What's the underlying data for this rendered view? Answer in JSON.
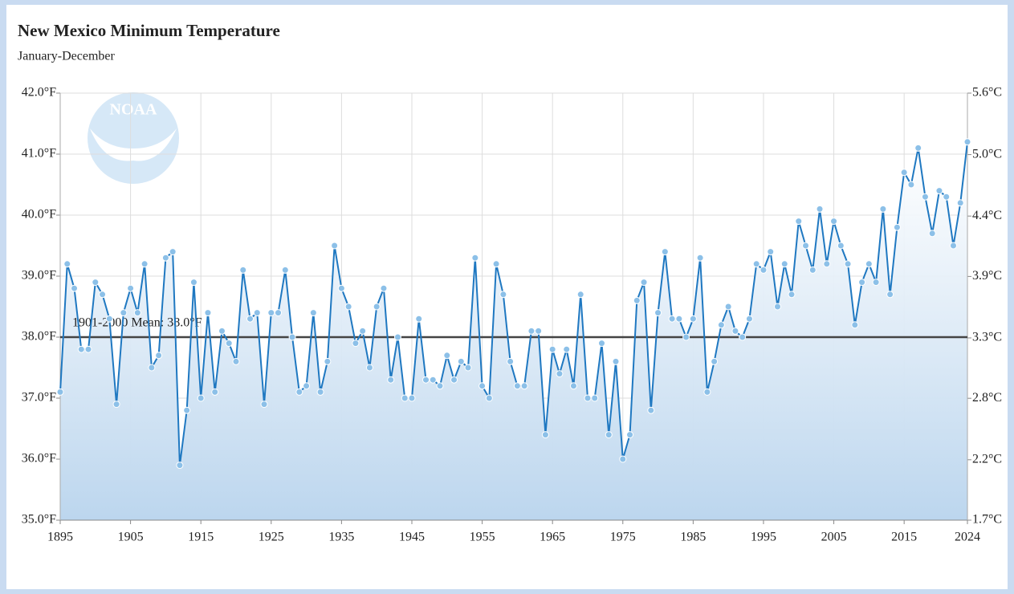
{
  "chart_data": {
    "type": "line",
    "title": "New Mexico Minimum Temperature",
    "subtitle": "January-December",
    "logo": "NOAA",
    "color": "#1f78c1",
    "grid": true,
    "x": [
      1895,
      1896,
      1897,
      1898,
      1899,
      1900,
      1901,
      1902,
      1903,
      1904,
      1905,
      1906,
      1907,
      1908,
      1909,
      1910,
      1911,
      1912,
      1913,
      1914,
      1915,
      1916,
      1917,
      1918,
      1919,
      1920,
      1921,
      1922,
      1923,
      1924,
      1925,
      1926,
      1927,
      1928,
      1929,
      1930,
      1931,
      1932,
      1933,
      1934,
      1935,
      1936,
      1937,
      1938,
      1939,
      1940,
      1941,
      1942,
      1943,
      1944,
      1945,
      1946,
      1947,
      1948,
      1949,
      1950,
      1951,
      1952,
      1953,
      1954,
      1955,
      1956,
      1957,
      1958,
      1959,
      1960,
      1961,
      1962,
      1963,
      1964,
      1965,
      1966,
      1967,
      1968,
      1969,
      1970,
      1971,
      1972,
      1973,
      1974,
      1975,
      1976,
      1977,
      1978,
      1979,
      1980,
      1981,
      1982,
      1983,
      1984,
      1985,
      1986,
      1987,
      1988,
      1989,
      1990,
      1991,
      1992,
      1993,
      1994,
      1995,
      1996,
      1997,
      1998,
      1999,
      2000,
      2001,
      2002,
      2003,
      2004,
      2005,
      2006,
      2007,
      2008,
      2009,
      2010,
      2011,
      2012,
      2013,
      2014,
      2015,
      2016,
      2017,
      2018,
      2019,
      2020,
      2021,
      2022,
      2023,
      2024
    ],
    "values": [
      37.1,
      39.2,
      38.8,
      37.8,
      37.8,
      38.9,
      38.7,
      38.3,
      36.9,
      38.4,
      38.8,
      38.4,
      39.2,
      37.5,
      37.7,
      39.3,
      39.4,
      35.9,
      36.8,
      38.9,
      37.0,
      38.4,
      37.1,
      38.1,
      37.9,
      37.6,
      39.1,
      38.3,
      38.4,
      36.9,
      38.4,
      38.4,
      39.1,
      38.0,
      37.1,
      37.2,
      38.4,
      37.1,
      37.6,
      39.5,
      38.8,
      38.5,
      37.9,
      38.1,
      37.5,
      38.5,
      38.8,
      37.3,
      38.0,
      37.0,
      37.0,
      38.3,
      37.3,
      37.3,
      37.2,
      37.7,
      37.3,
      37.6,
      37.5,
      39.3,
      37.2,
      37.0,
      39.2,
      38.7,
      37.6,
      37.2,
      37.2,
      38.1,
      38.1,
      36.4,
      37.8,
      37.4,
      37.8,
      37.2,
      38.7,
      37.0,
      37.0,
      37.9,
      36.4,
      37.6,
      36.0,
      36.4,
      38.6,
      38.9,
      36.8,
      38.4,
      39.4,
      38.3,
      38.3,
      38.0,
      38.3,
      39.3,
      37.1,
      37.6,
      38.2,
      38.5,
      38.1,
      38.0,
      38.3,
      39.2,
      39.1,
      39.4,
      38.5,
      39.2,
      38.7,
      39.9,
      39.5,
      39.1,
      40.1,
      39.2,
      39.9,
      39.5,
      39.2,
      38.2,
      38.9,
      39.2,
      38.9,
      40.1,
      38.7,
      39.8,
      40.7,
      40.5,
      41.1,
      40.3,
      39.7,
      40.4,
      40.3,
      39.5,
      40.2,
      41.2
    ],
    "xlim": [
      1895,
      2024
    ],
    "xticks": [
      1895,
      1905,
      1915,
      1925,
      1935,
      1945,
      1955,
      1965,
      1975,
      1985,
      1995,
      2005,
      2015,
      2024
    ],
    "ylim": [
      35,
      42
    ],
    "yticks": [
      {
        "value": 42,
        "label": "42.0°F"
      },
      {
        "value": 41,
        "label": "41.0°F"
      },
      {
        "value": 40,
        "label": "40.0°F"
      },
      {
        "value": 39,
        "label": "39.0°F"
      },
      {
        "value": 38,
        "label": "38.0°F"
      },
      {
        "value": 37,
        "label": "37.0°F"
      },
      {
        "value": 36,
        "label": "36.0°F"
      },
      {
        "value": 35,
        "label": "35.0°F"
      }
    ],
    "y2lim": [
      1.67,
      5.56
    ],
    "y2ticks": [
      {
        "value": 5.56,
        "label": "5.6°C"
      },
      {
        "value": 5.0,
        "label": "5.0°C"
      },
      {
        "value": 4.44,
        "label": "4.4°C"
      },
      {
        "value": 3.89,
        "label": "3.9°C"
      },
      {
        "value": 3.33,
        "label": "3.3°C"
      },
      {
        "value": 2.78,
        "label": "2.8°C"
      },
      {
        "value": 2.22,
        "label": "2.2°C"
      },
      {
        "value": 1.67,
        "label": "1.7°C"
      }
    ],
    "mean_line": {
      "value": 38.0,
      "label": "1901-2000 Mean: 38.0°F"
    }
  }
}
